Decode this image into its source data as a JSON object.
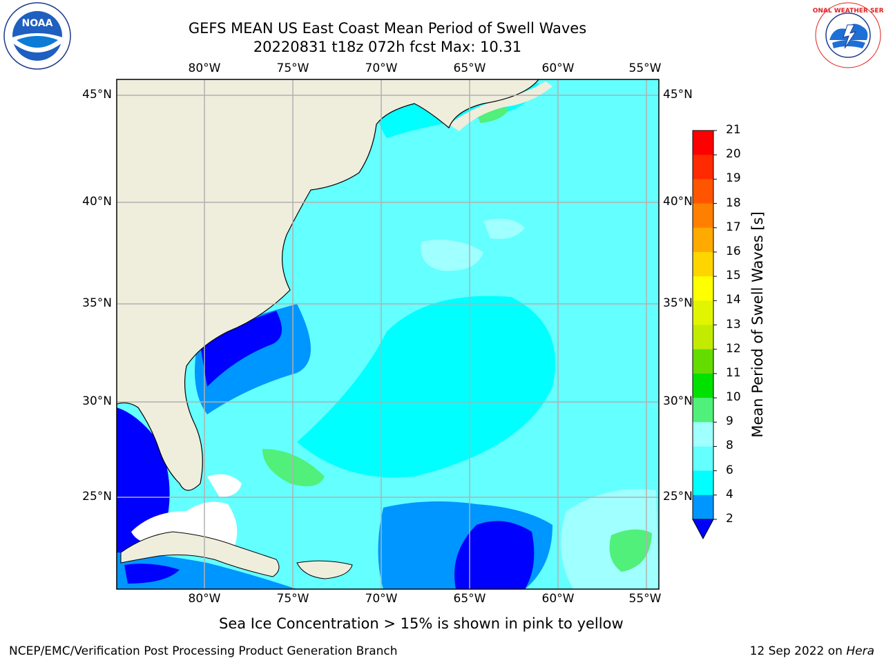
{
  "title_line1": "GEFS MEAN US East Coast Mean Period of Swell Waves",
  "title_line2": "20220831 t18z 072h fcst   Max: 10.31",
  "lon_ticks": [
    "80°W",
    "75°W",
    "70°W",
    "65°W",
    "60°W",
    "55°W"
  ],
  "lat_ticks": [
    "45°N",
    "40°N",
    "35°N",
    "30°N",
    "25°N"
  ],
  "colorbar": {
    "label": "Mean Period of Swell Waves [s]",
    "ticks": [
      "21",
      "20",
      "19",
      "18",
      "17",
      "16",
      "15",
      "14",
      "13",
      "12",
      "11",
      "10",
      "9",
      "8",
      "6",
      "4",
      "2"
    ],
    "colors": [
      "#ff0000",
      "#ff2a00",
      "#ff5500",
      "#ff8000",
      "#ffaa00",
      "#ffd500",
      "#ffff00",
      "#e1f500",
      "#c3eb00",
      "#64dc00",
      "#00e100",
      "#50f07a",
      "#a0ffff",
      "#64ffff",
      "#00ffff",
      "#0096ff",
      "#0000ff"
    ]
  },
  "note": "Sea Ice Concentration > 15% is shown in pink to yellow",
  "footer_left": "NCEP/EMC/Verification Post Processing Product Generation Branch",
  "footer_right_date": "12 Sep 2022 on ",
  "footer_right_host": "Hera",
  "logos": {
    "left": "noaa-logo",
    "left_text": "NOAA",
    "right": "nws-logo",
    "right_text": "NATIONAL WEATHER SERVICE"
  },
  "land_color": "#efeddc",
  "grid_color": "#b0b0b0"
}
